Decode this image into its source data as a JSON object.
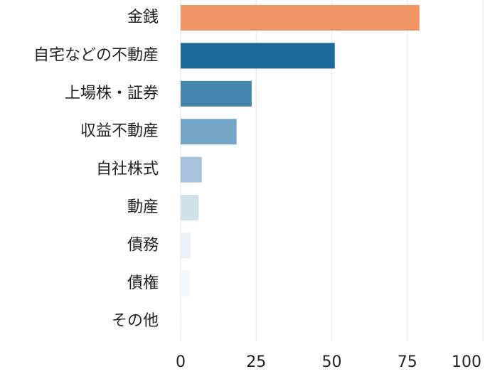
{
  "chart_data": {
    "type": "bar",
    "orientation": "horizontal",
    "categories": [
      "金銭",
      "自宅などの不動産",
      "上場株・証券",
      "収益不動産",
      "自社株式",
      "動産",
      "債務",
      "債権",
      "その他"
    ],
    "values": [
      79,
      51,
      23.5,
      18.5,
      7,
      6,
      3.3,
      3.1,
      0.5
    ],
    "colors": [
      "#f19566",
      "#1b6a99",
      "#4584ad",
      "#75a5c4",
      "#a6c4d9",
      "#d0e1ea",
      "#e9f1f6",
      "#f1f7fb",
      "#f6f9fb"
    ],
    "xlim": [
      0,
      100
    ],
    "xticks": [
      0,
      25,
      50,
      75,
      100
    ],
    "grid": true
  }
}
